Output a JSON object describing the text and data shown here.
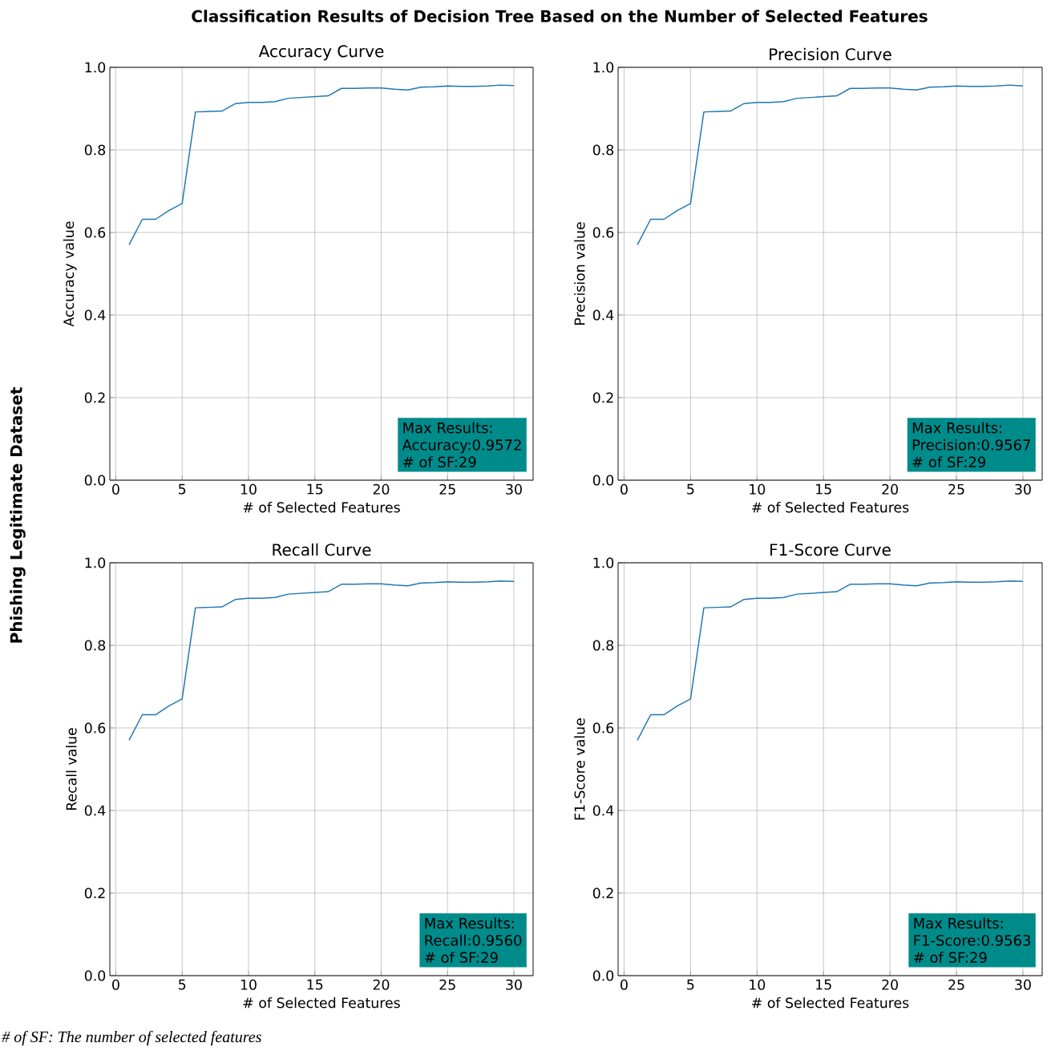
{
  "chart_data": [
    {
      "type": "line",
      "title": "Accuracy Curve",
      "xlabel": "# of Selected Features",
      "ylabel": "Accuracy value",
      "x": [
        1,
        2,
        3,
        4,
        5,
        6,
        7,
        8,
        9,
        10,
        11,
        12,
        13,
        14,
        15,
        16,
        17,
        18,
        19,
        20,
        21,
        22,
        23,
        24,
        25,
        26,
        27,
        28,
        29,
        30
      ],
      "series": [
        {
          "color": "#1f77b4",
          "values": [
            0.57,
            0.632,
            0.632,
            0.653,
            0.67,
            0.892,
            0.893,
            0.894,
            0.912,
            0.915,
            0.915,
            0.917,
            0.925,
            0.927,
            0.929,
            0.931,
            0.949,
            0.949,
            0.95,
            0.95,
            0.947,
            0.945,
            0.952,
            0.953,
            0.955,
            0.954,
            0.954,
            0.955,
            0.957,
            0.956
          ]
        }
      ],
      "xlim": [
        -0.45,
        31.45
      ],
      "ylim": [
        0,
        1
      ],
      "xticks": [
        0,
        5,
        10,
        15,
        20,
        25,
        30
      ],
      "yticks": [
        {
          "value": 0,
          "label": "0.0"
        },
        {
          "value": 0.2,
          "label": "0.2"
        },
        {
          "value": 0.4,
          "label": "0.4"
        },
        {
          "value": 0.6,
          "label": "0.6"
        },
        {
          "value": 0.8,
          "label": "0.8"
        },
        {
          "value": 1,
          "label": "1.0"
        }
      ],
      "grid": true,
      "annotations": [
        "Max Results:",
        "Accuracy:0.9572",
        "# of SF:29",
        "Classification Results of Decision Tree Based on the Number of Selected Features",
        "Phishing Legitimate Dataset",
        "# of SF: The number of selected features"
      ]
    },
    {
      "type": "line",
      "title": "Precision Curve",
      "xlabel": "# of Selected Features",
      "ylabel": "Precision value",
      "x": [
        1,
        2,
        3,
        4,
        5,
        6,
        7,
        8,
        9,
        10,
        11,
        12,
        13,
        14,
        15,
        16,
        17,
        18,
        19,
        20,
        21,
        22,
        23,
        24,
        25,
        26,
        27,
        28,
        29,
        30
      ],
      "series": [
        {
          "color": "#1f77b4",
          "values": [
            0.57,
            0.632,
            0.632,
            0.653,
            0.67,
            0.892,
            0.893,
            0.894,
            0.912,
            0.915,
            0.915,
            0.917,
            0.925,
            0.927,
            0.929,
            0.931,
            0.949,
            0.949,
            0.95,
            0.95,
            0.947,
            0.945,
            0.952,
            0.953,
            0.955,
            0.954,
            0.954,
            0.955,
            0.957,
            0.955
          ]
        }
      ],
      "xlim": [
        -0.45,
        31.45
      ],
      "ylim": [
        0,
        1
      ],
      "xticks": [
        0,
        5,
        10,
        15,
        20,
        25,
        30
      ],
      "yticks": [
        {
          "value": 0,
          "label": "0.0"
        },
        {
          "value": 0.2,
          "label": "0.2"
        },
        {
          "value": 0.4,
          "label": "0.4"
        },
        {
          "value": 0.6,
          "label": "0.6"
        },
        {
          "value": 0.8,
          "label": "0.8"
        },
        {
          "value": 1,
          "label": "1.0"
        }
      ],
      "grid": true,
      "annotations": [
        "Max Results:",
        "Precision:0.9567",
        "# of SF:29"
      ]
    },
    {
      "type": "line",
      "title": "Recall Curve",
      "xlabel": "# of Selected Features",
      "ylabel": "Recall value",
      "x": [
        1,
        2,
        3,
        4,
        5,
        6,
        7,
        8,
        9,
        10,
        11,
        12,
        13,
        14,
        15,
        16,
        17,
        18,
        19,
        20,
        21,
        22,
        23,
        24,
        25,
        26,
        27,
        28,
        29,
        30
      ],
      "series": [
        {
          "color": "#1f77b4",
          "values": [
            0.57,
            0.632,
            0.632,
            0.653,
            0.67,
            0.891,
            0.892,
            0.893,
            0.911,
            0.914,
            0.914,
            0.916,
            0.924,
            0.926,
            0.928,
            0.93,
            0.948,
            0.948,
            0.949,
            0.949,
            0.946,
            0.944,
            0.951,
            0.952,
            0.954,
            0.953,
            0.953,
            0.954,
            0.956,
            0.955
          ]
        }
      ],
      "xlim": [
        -0.45,
        31.45
      ],
      "ylim": [
        0,
        1
      ],
      "xticks": [
        0,
        5,
        10,
        15,
        20,
        25,
        30
      ],
      "yticks": [
        {
          "value": 0,
          "label": "0.0"
        },
        {
          "value": 0.2,
          "label": "0.2"
        },
        {
          "value": 0.4,
          "label": "0.4"
        },
        {
          "value": 0.6,
          "label": "0.6"
        },
        {
          "value": 0.8,
          "label": "0.8"
        },
        {
          "value": 1,
          "label": "1.0"
        }
      ],
      "grid": true,
      "annotations": [
        "Max Results:",
        "Recall:0.9560",
        "# of SF:29"
      ]
    },
    {
      "type": "line",
      "title": "F1-Score Curve",
      "xlabel": "# of Selected Features",
      "ylabel": "F1-Score value",
      "x": [
        1,
        2,
        3,
        4,
        5,
        6,
        7,
        8,
        9,
        10,
        11,
        12,
        13,
        14,
        15,
        16,
        17,
        18,
        19,
        20,
        21,
        22,
        23,
        24,
        25,
        26,
        27,
        28,
        29,
        30
      ],
      "series": [
        {
          "color": "#1f77b4",
          "values": [
            0.57,
            0.632,
            0.632,
            0.653,
            0.67,
            0.891,
            0.892,
            0.893,
            0.911,
            0.914,
            0.914,
            0.916,
            0.924,
            0.926,
            0.928,
            0.93,
            0.948,
            0.948,
            0.949,
            0.949,
            0.946,
            0.944,
            0.951,
            0.952,
            0.954,
            0.953,
            0.953,
            0.954,
            0.956,
            0.955
          ]
        }
      ],
      "xlim": [
        -0.45,
        31.45
      ],
      "ylim": [
        0,
        1
      ],
      "xticks": [
        0,
        5,
        10,
        15,
        20,
        25,
        30
      ],
      "yticks": [
        {
          "value": 0,
          "label": "0.0"
        },
        {
          "value": 0.2,
          "label": "0.2"
        },
        {
          "value": 0.4,
          "label": "0.4"
        },
        {
          "value": 0.6,
          "label": "0.6"
        },
        {
          "value": 0.8,
          "label": "0.8"
        },
        {
          "value": 1,
          "label": "1.0"
        }
      ],
      "grid": true,
      "annotations": [
        "Max Results:",
        "F1-Score:0.9563",
        "# of SF:29"
      ]
    }
  ]
}
